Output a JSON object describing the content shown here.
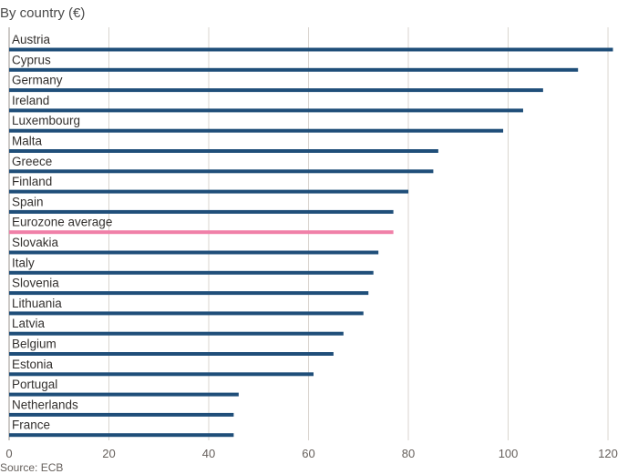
{
  "chart_data": {
    "type": "bar",
    "orientation": "horizontal",
    "title": "",
    "subtitle": "By country (€)",
    "xlabel": "",
    "ylabel": "",
    "xlim": [
      0,
      122
    ],
    "xticks": [
      0,
      20,
      40,
      60,
      80,
      100,
      120
    ],
    "grid": true,
    "categories": [
      "Austria",
      "Cyprus",
      "Germany",
      "Ireland",
      "Luxembourg",
      "Malta",
      "Greece",
      "Finland",
      "Spain",
      "Eurozone average",
      "Slovakia",
      "Italy",
      "Slovenia",
      "Lithuania",
      "Latvia",
      "Belgium",
      "Estonia",
      "Portugal",
      "Netherlands",
      "France"
    ],
    "values": [
      121,
      114,
      107,
      103,
      99,
      86,
      85,
      80,
      77,
      77,
      74,
      73,
      72,
      71,
      67,
      65,
      61,
      46,
      45,
      45
    ],
    "highlight": "Eurozone average",
    "colors": {
      "bar": "#1f4e79",
      "highlight": "#f080a8",
      "grid": "#d9d4cf",
      "text": "#33302e"
    },
    "source": "Source: ECB"
  }
}
